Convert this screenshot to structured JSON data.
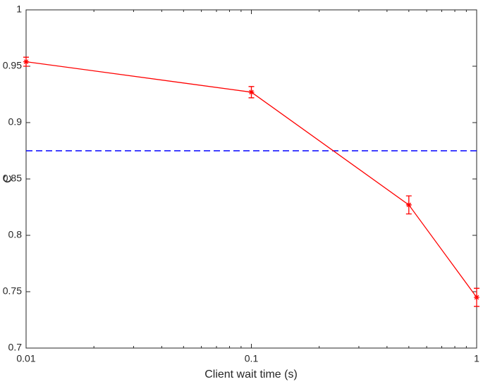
{
  "chart_data": {
    "type": "line",
    "xlabel": "Client wait time (s)",
    "ylabel": "C",
    "x": [
      0.01,
      0.1,
      0.5,
      1
    ],
    "series": [
      {
        "color": "#ff0000",
        "values": [
          0.954,
          0.927,
          0.827,
          0.745
        ],
        "errors": [
          0.004,
          0.005,
          0.008,
          0.008
        ]
      }
    ],
    "reference_line": {
      "value": 0.875,
      "color": "#0000ff",
      "dashed": true
    },
    "xscale": "log",
    "xlim": [
      0.01,
      1
    ],
    "xticks": [
      0.01,
      0.1,
      1
    ],
    "ylim": [
      0.7,
      1
    ],
    "yticks": [
      0.7,
      0.75,
      0.8,
      0.85,
      0.9,
      0.95,
      1
    ],
    "grid": false
  }
}
